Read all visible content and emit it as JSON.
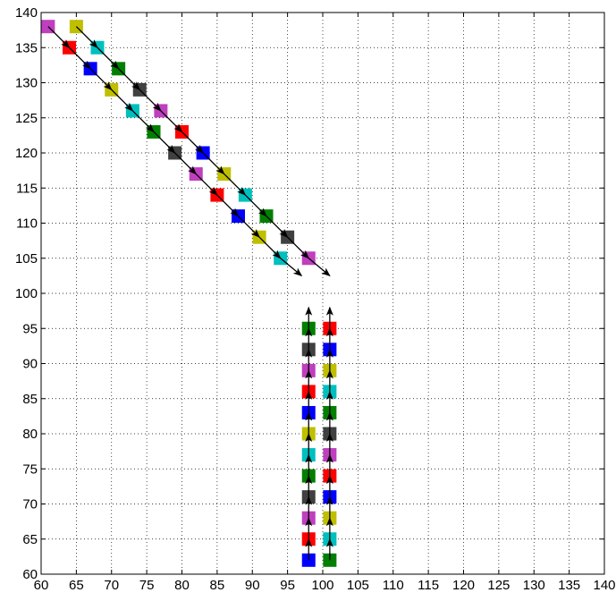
{
  "chart_data": {
    "type": "scatter",
    "title": "",
    "xlabel": "",
    "ylabel": "",
    "xlim": [
      60,
      140
    ],
    "ylim": [
      60,
      140
    ],
    "x_ticks": [
      60,
      65,
      70,
      75,
      80,
      85,
      90,
      95,
      100,
      105,
      110,
      115,
      120,
      125,
      130,
      135,
      140
    ],
    "y_ticks": [
      60,
      65,
      70,
      75,
      80,
      85,
      90,
      95,
      100,
      105,
      110,
      115,
      120,
      125,
      130,
      135,
      140
    ],
    "x_tick_labels": [
      "60",
      "65",
      "70",
      "75",
      "80",
      "85",
      "90",
      "95",
      "100",
      "105",
      "110",
      "115",
      "120",
      "125",
      "130",
      "135",
      "140"
    ],
    "y_tick_labels": [
      "60",
      "65",
      "70",
      "75",
      "80",
      "85",
      "90",
      "95",
      "100",
      "105",
      "110",
      "115",
      "120",
      "125",
      "130",
      "135",
      "140"
    ],
    "grid": true,
    "grid_style": "dotted",
    "legend": "none",
    "marker": "square",
    "palette": {
      "m": "#bf3fbf",
      "r": "#ff0000",
      "b": "#0000ff",
      "y": "#bfbf00",
      "c": "#00bfbf",
      "g": "#007f00",
      "k": "#404040"
    },
    "series": [
      {
        "points": [
          {
            "x": 61,
            "y": 138,
            "color": "m"
          },
          {
            "x": 64,
            "y": 135,
            "color": "r"
          },
          {
            "x": 67,
            "y": 132,
            "color": "b"
          },
          {
            "x": 70,
            "y": 129,
            "color": "y"
          },
          {
            "x": 73,
            "y": 126,
            "color": "c"
          },
          {
            "x": 76,
            "y": 123,
            "color": "g"
          },
          {
            "x": 79,
            "y": 120,
            "color": "k"
          },
          {
            "x": 82,
            "y": 117,
            "color": "m"
          },
          {
            "x": 85,
            "y": 114,
            "color": "r"
          },
          {
            "x": 88,
            "y": 111,
            "color": "b"
          },
          {
            "x": 91,
            "y": 108,
            "color": "y"
          },
          {
            "x": 94,
            "y": 105,
            "color": "c"
          }
        ],
        "arrow_end": {
          "x": 97,
          "y": 102.5
        }
      },
      {
        "points": [
          {
            "x": 65,
            "y": 138,
            "color": "y"
          },
          {
            "x": 68,
            "y": 135,
            "color": "c"
          },
          {
            "x": 71,
            "y": 132,
            "color": "g"
          },
          {
            "x": 74,
            "y": 129,
            "color": "k"
          },
          {
            "x": 77,
            "y": 126,
            "color": "m"
          },
          {
            "x": 80,
            "y": 123,
            "color": "r"
          },
          {
            "x": 83,
            "y": 120,
            "color": "b"
          },
          {
            "x": 86,
            "y": 117,
            "color": "y"
          },
          {
            "x": 89,
            "y": 114,
            "color": "c"
          },
          {
            "x": 92,
            "y": 111,
            "color": "g"
          },
          {
            "x": 95,
            "y": 108,
            "color": "k"
          },
          {
            "x": 98,
            "y": 105,
            "color": "m"
          }
        ],
        "arrow_end": {
          "x": 101,
          "y": 102.5
        }
      },
      {
        "points": [
          {
            "x": 98,
            "y": 62,
            "color": "b"
          },
          {
            "x": 98,
            "y": 65,
            "color": "r"
          },
          {
            "x": 98,
            "y": 68,
            "color": "m"
          },
          {
            "x": 98,
            "y": 71,
            "color": "k"
          },
          {
            "x": 98,
            "y": 74,
            "color": "g"
          },
          {
            "x": 98,
            "y": 77,
            "color": "c"
          },
          {
            "x": 98,
            "y": 80,
            "color": "y"
          },
          {
            "x": 98,
            "y": 83,
            "color": "b"
          },
          {
            "x": 98,
            "y": 86,
            "color": "r"
          },
          {
            "x": 98,
            "y": 89,
            "color": "m"
          },
          {
            "x": 98,
            "y": 92,
            "color": "k"
          },
          {
            "x": 98,
            "y": 95,
            "color": "g"
          }
        ],
        "arrow_end": {
          "x": 98,
          "y": 98
        }
      },
      {
        "points": [
          {
            "x": 101,
            "y": 62,
            "color": "g"
          },
          {
            "x": 101,
            "y": 65,
            "color": "c"
          },
          {
            "x": 101,
            "y": 68,
            "color": "y"
          },
          {
            "x": 101,
            "y": 71,
            "color": "b"
          },
          {
            "x": 101,
            "y": 74,
            "color": "r"
          },
          {
            "x": 101,
            "y": 77,
            "color": "m"
          },
          {
            "x": 101,
            "y": 80,
            "color": "k"
          },
          {
            "x": 101,
            "y": 83,
            "color": "g"
          },
          {
            "x": 101,
            "y": 86,
            "color": "c"
          },
          {
            "x": 101,
            "y": 89,
            "color": "y"
          },
          {
            "x": 101,
            "y": 92,
            "color": "b"
          },
          {
            "x": 101,
            "y": 95,
            "color": "r"
          }
        ],
        "arrow_end": {
          "x": 101,
          "y": 98
        }
      }
    ]
  }
}
